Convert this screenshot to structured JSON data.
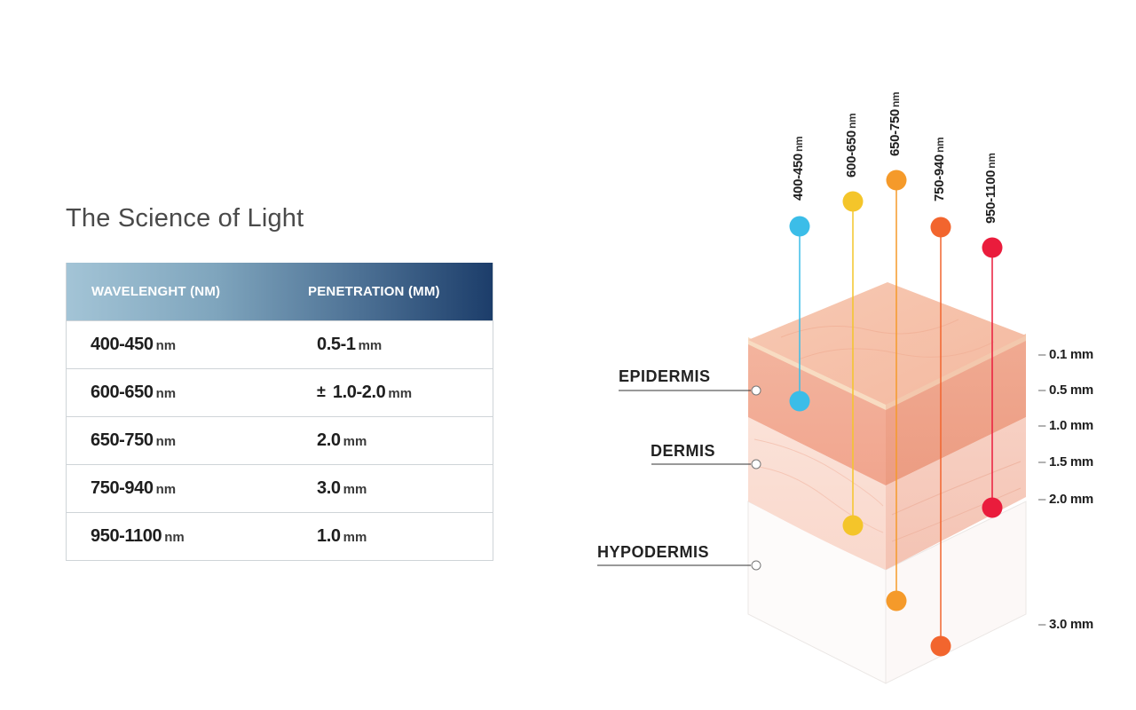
{
  "title": "The Science of Light",
  "table": {
    "headers": {
      "wavelength": "WAVELENGHT (NM)",
      "penetration": "PENETRATION (MM)"
    },
    "rows": [
      {
        "wavelength": "400-450",
        "wl_unit": "nm",
        "pm": "",
        "penetration": "0.5-1",
        "pen_unit": "mm"
      },
      {
        "wavelength": "600-650",
        "wl_unit": "nm",
        "pm": "±",
        "penetration": "1.0-2.0",
        "pen_unit": "mm"
      },
      {
        "wavelength": "650-750",
        "wl_unit": "nm",
        "pm": "",
        "penetration": "2.0",
        "pen_unit": "mm"
      },
      {
        "wavelength": "750-940",
        "wl_unit": "nm",
        "pm": "",
        "penetration": "3.0",
        "pen_unit": "mm"
      },
      {
        "wavelength": "950-1100",
        "wl_unit": "nm",
        "pm": "",
        "penetration": "1.0",
        "pen_unit": "mm"
      }
    ]
  },
  "diagram": {
    "wavelengths": [
      {
        "label": "400-450",
        "unit": "nm",
        "color": "#3bbde8"
      },
      {
        "label": "600-650",
        "unit": "nm",
        "color": "#f4c52a"
      },
      {
        "label": "650-750",
        "unit": "nm",
        "color": "#f59a2a"
      },
      {
        "label": "750-940",
        "unit": "nm",
        "color": "#f2652e"
      },
      {
        "label": "950-1100",
        "unit": "nm",
        "color": "#ea1c3c"
      }
    ],
    "layers": {
      "epidermis": "EPIDERMIS",
      "dermis": "DERMIS",
      "hypodermis": "HYPODERMIS"
    },
    "depths": [
      "0.1 mm",
      "0.5 mm",
      "1.0 mm",
      "1.5 mm",
      "2.0 mm",
      "3.0 mm"
    ]
  }
}
